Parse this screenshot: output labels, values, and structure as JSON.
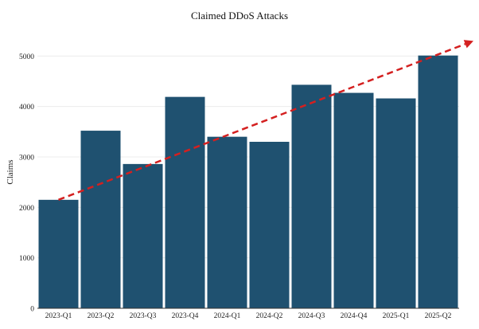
{
  "chart_data": {
    "type": "bar",
    "title": "Claimed DDoS Attacks",
    "xlabel": "",
    "ylabel": "Claims",
    "categories": [
      "2023-Q1",
      "2023-Q2",
      "2023-Q3",
      "2023-Q4",
      "2024-Q1",
      "2024-Q2",
      "2024-Q3",
      "2024-Q4",
      "2025-Q1",
      "2025-Q2"
    ],
    "values": [
      2150,
      3520,
      2860,
      4190,
      3400,
      3300,
      4430,
      4270,
      4160,
      5010
    ],
    "ylim": [
      0,
      5400
    ],
    "yticks": [
      0,
      1000,
      2000,
      3000,
      4000,
      5000
    ],
    "grid": true,
    "legend": "none",
    "trend_line": {
      "style": "dashed-arrow",
      "start": {
        "category": "2023-Q1",
        "value": 2150
      },
      "end_value": 5300
    },
    "colors": {
      "bar": "#1f5170",
      "trend": "#d42020"
    }
  }
}
